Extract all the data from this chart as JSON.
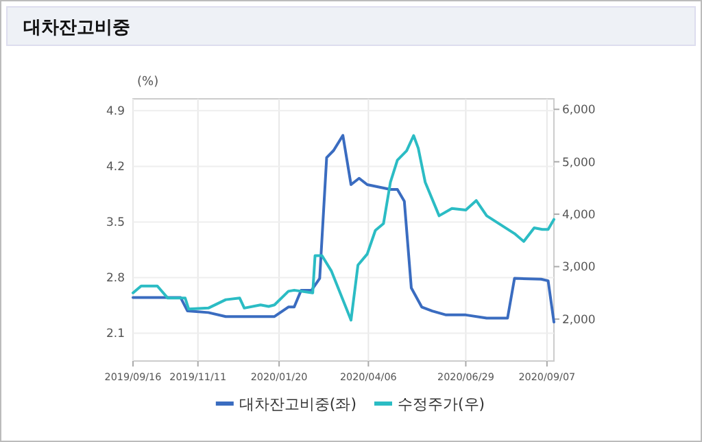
{
  "chart_data": {
    "type": "line",
    "title": "대차잔고비중",
    "ylabel": "(%)",
    "xlim": [
      "2019-09-16",
      "2020-09-13"
    ],
    "xticks": [
      {
        "value": "2019-09-16",
        "label": "2019/09/16"
      },
      {
        "value": "2019-11-11",
        "label": "2019/11/11"
      },
      {
        "value": "2020-01-20",
        "label": "2020/01/20"
      },
      {
        "value": "2020-04-06",
        "label": "2020/04/06"
      },
      {
        "value": "2020-06-29",
        "label": "2020/06/29"
      },
      {
        "value": "2020-09-07",
        "label": "2020/09/07"
      }
    ],
    "ylim": [
      1.75,
      5.05
    ],
    "yticks": [
      2.1,
      2.8,
      3.5,
      4.2,
      4.9
    ],
    "y2lim": [
      1200,
      6200
    ],
    "y2ticks": [
      {
        "value": 2000,
        "label": "2,000"
      },
      {
        "value": 3000,
        "label": "3,000"
      },
      {
        "value": 4000,
        "label": "4,000"
      },
      {
        "value": 5000,
        "label": "5,000"
      },
      {
        "value": 6000,
        "label": "6,000"
      }
    ],
    "grid": true,
    "legend": "bottom",
    "series": [
      {
        "name": "대차잔고비중(좌)",
        "color": "#3a6cc0",
        "axis": "y",
        "x": [
          "2019-09-16",
          "2019-10-27",
          "2019-11-02",
          "2019-11-20",
          "2019-12-05",
          "2020-01-16",
          "2020-01-28",
          "2020-02-02",
          "2020-02-08",
          "2020-02-17",
          "2020-02-24",
          "2020-03-01",
          "2020-03-07",
          "2020-03-15",
          "2020-03-22",
          "2020-03-29",
          "2020-04-05",
          "2020-04-25",
          "2020-05-01",
          "2020-05-07",
          "2020-05-13",
          "2020-05-22",
          "2020-05-31",
          "2020-06-12",
          "2020-06-29",
          "2020-07-17",
          "2020-08-04",
          "2020-08-10",
          "2020-09-02",
          "2020-09-08",
          "2020-09-13"
        ],
        "values": [
          2.55,
          2.55,
          2.38,
          2.36,
          2.31,
          2.31,
          2.43,
          2.43,
          2.64,
          2.64,
          2.79,
          4.31,
          4.4,
          4.59,
          3.97,
          4.05,
          3.97,
          3.91,
          3.91,
          3.76,
          2.67,
          2.43,
          2.38,
          2.33,
          2.33,
          2.29,
          2.29,
          2.79,
          2.78,
          2.76,
          2.24
        ]
      },
      {
        "name": "수정주가(우)",
        "color": "#2bbcc4",
        "axis": "y2",
        "x": [
          "2019-09-16",
          "2019-09-23",
          "2019-10-07",
          "2019-10-16",
          "2019-10-31",
          "2019-11-03",
          "2019-11-20",
          "2019-12-05",
          "2019-12-17",
          "2019-12-21",
          "2020-01-04",
          "2020-01-11",
          "2020-01-16",
          "2020-01-28",
          "2020-02-02",
          "2020-02-18",
          "2020-02-20",
          "2020-02-26",
          "2020-03-05",
          "2020-03-22",
          "2020-03-28",
          "2020-04-05",
          "2020-04-12",
          "2020-04-19",
          "2020-04-25",
          "2020-05-01",
          "2020-05-09",
          "2020-05-15",
          "2020-05-19",
          "2020-05-25",
          "2020-06-06",
          "2020-06-17",
          "2020-06-29",
          "2020-07-08",
          "2020-07-17",
          "2020-08-10",
          "2020-08-18",
          "2020-08-27",
          "2020-09-03",
          "2020-09-08",
          "2020-09-13"
        ],
        "values": [
          2500,
          2630,
          2630,
          2400,
          2400,
          2190,
          2210,
          2370,
          2400,
          2210,
          2270,
          2240,
          2270,
          2530,
          2550,
          2500,
          3210,
          3210,
          2920,
          1980,
          3030,
          3240,
          3690,
          3820,
          4610,
          5030,
          5210,
          5500,
          5260,
          4610,
          3970,
          4110,
          4080,
          4260,
          3970,
          3630,
          3480,
          3740,
          3710,
          3710,
          3900
        ]
      }
    ]
  }
}
